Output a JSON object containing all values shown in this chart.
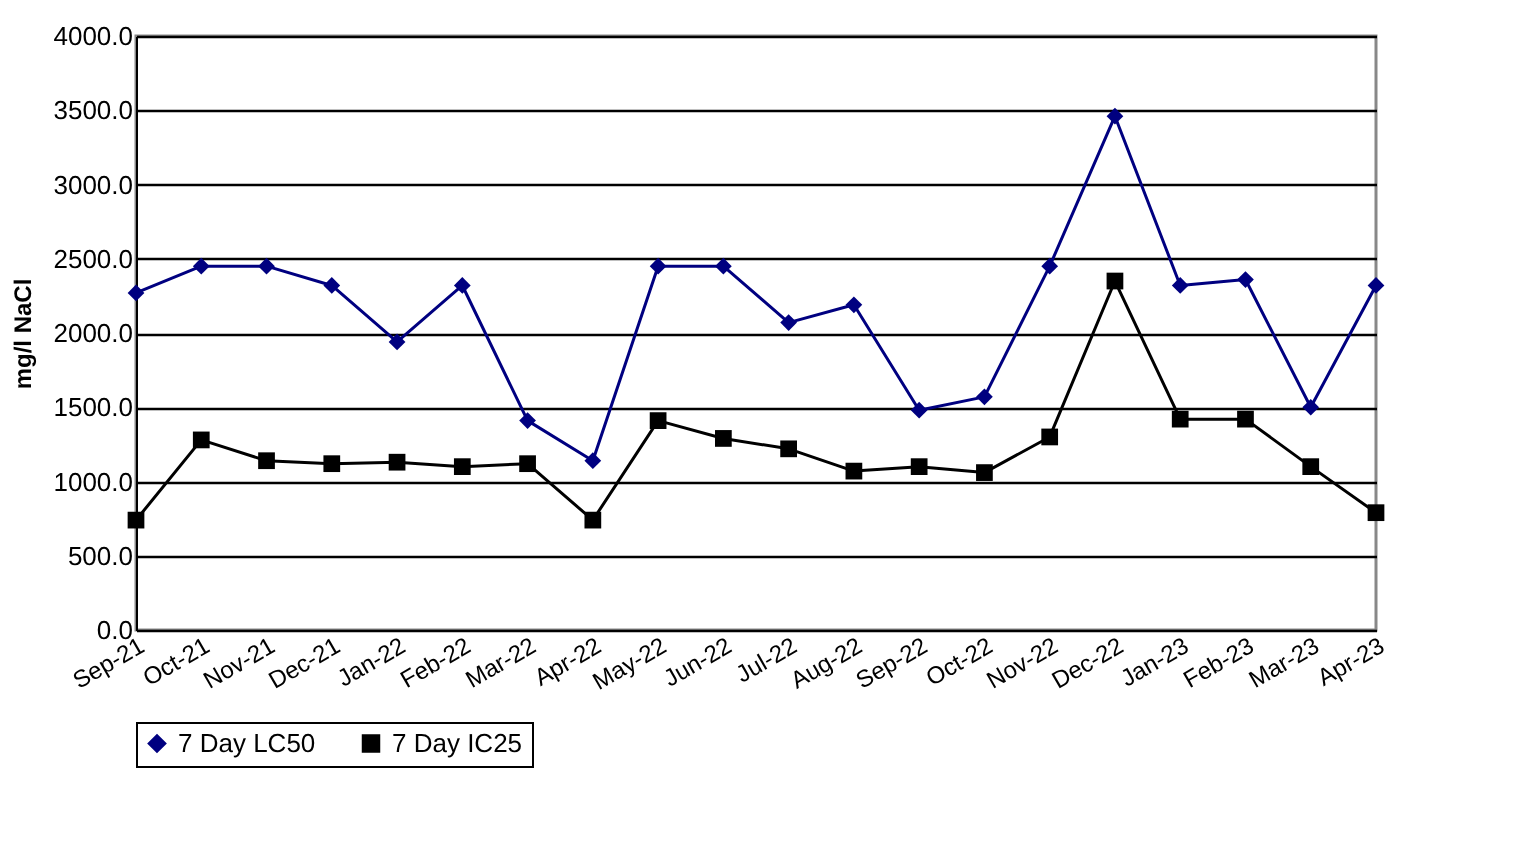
{
  "chart_data": {
    "type": "line",
    "ylabel": "mg/l NaCl",
    "categories": [
      "Sep-21",
      "Oct-21",
      "Nov-21",
      "Dec-21",
      "Jan-22",
      "Feb-22",
      "Mar-22",
      "Apr-22",
      "May-22",
      "Jun-22",
      "Jul-22",
      "Aug-22",
      "Sep-22",
      "Oct-22",
      "Nov-22",
      "Dec-22",
      "Jan-23",
      "Feb-23",
      "Mar-23",
      "Apr-23"
    ],
    "series": [
      {
        "name": "7 Day LC50",
        "color": "#000080",
        "marker": "diamond",
        "values": [
          2270,
          2450,
          2450,
          2320,
          1940,
          2320,
          1410,
          1140,
          2450,
          2450,
          2070,
          2190,
          1480,
          1570,
          2450,
          3460,
          2320,
          2360,
          1500,
          2320
        ]
      },
      {
        "name": "7 Day IC25",
        "color": "#000000",
        "marker": "square",
        "values": [
          740,
          1280,
          1140,
          1120,
          1130,
          1100,
          1120,
          740,
          1410,
          1290,
          1220,
          1070,
          1100,
          1060,
          1300,
          2350,
          1420,
          1420,
          1100,
          790
        ]
      }
    ],
    "ylim": [
      0,
      4000
    ],
    "yticks": [
      {
        "value": 0,
        "label": "0.0"
      },
      {
        "value": 500,
        "label": "500.0"
      },
      {
        "value": 1000,
        "label": "1000.0"
      },
      {
        "value": 1500,
        "label": "1500.0"
      },
      {
        "value": 2000,
        "label": "2000.0"
      },
      {
        "value": 2500,
        "label": "2500.0"
      },
      {
        "value": 3000,
        "label": "3000.0"
      },
      {
        "value": 3500,
        "label": "3500.0"
      },
      {
        "value": 4000,
        "label": "4000.0"
      }
    ],
    "grid": "y",
    "legend": "bottom"
  }
}
